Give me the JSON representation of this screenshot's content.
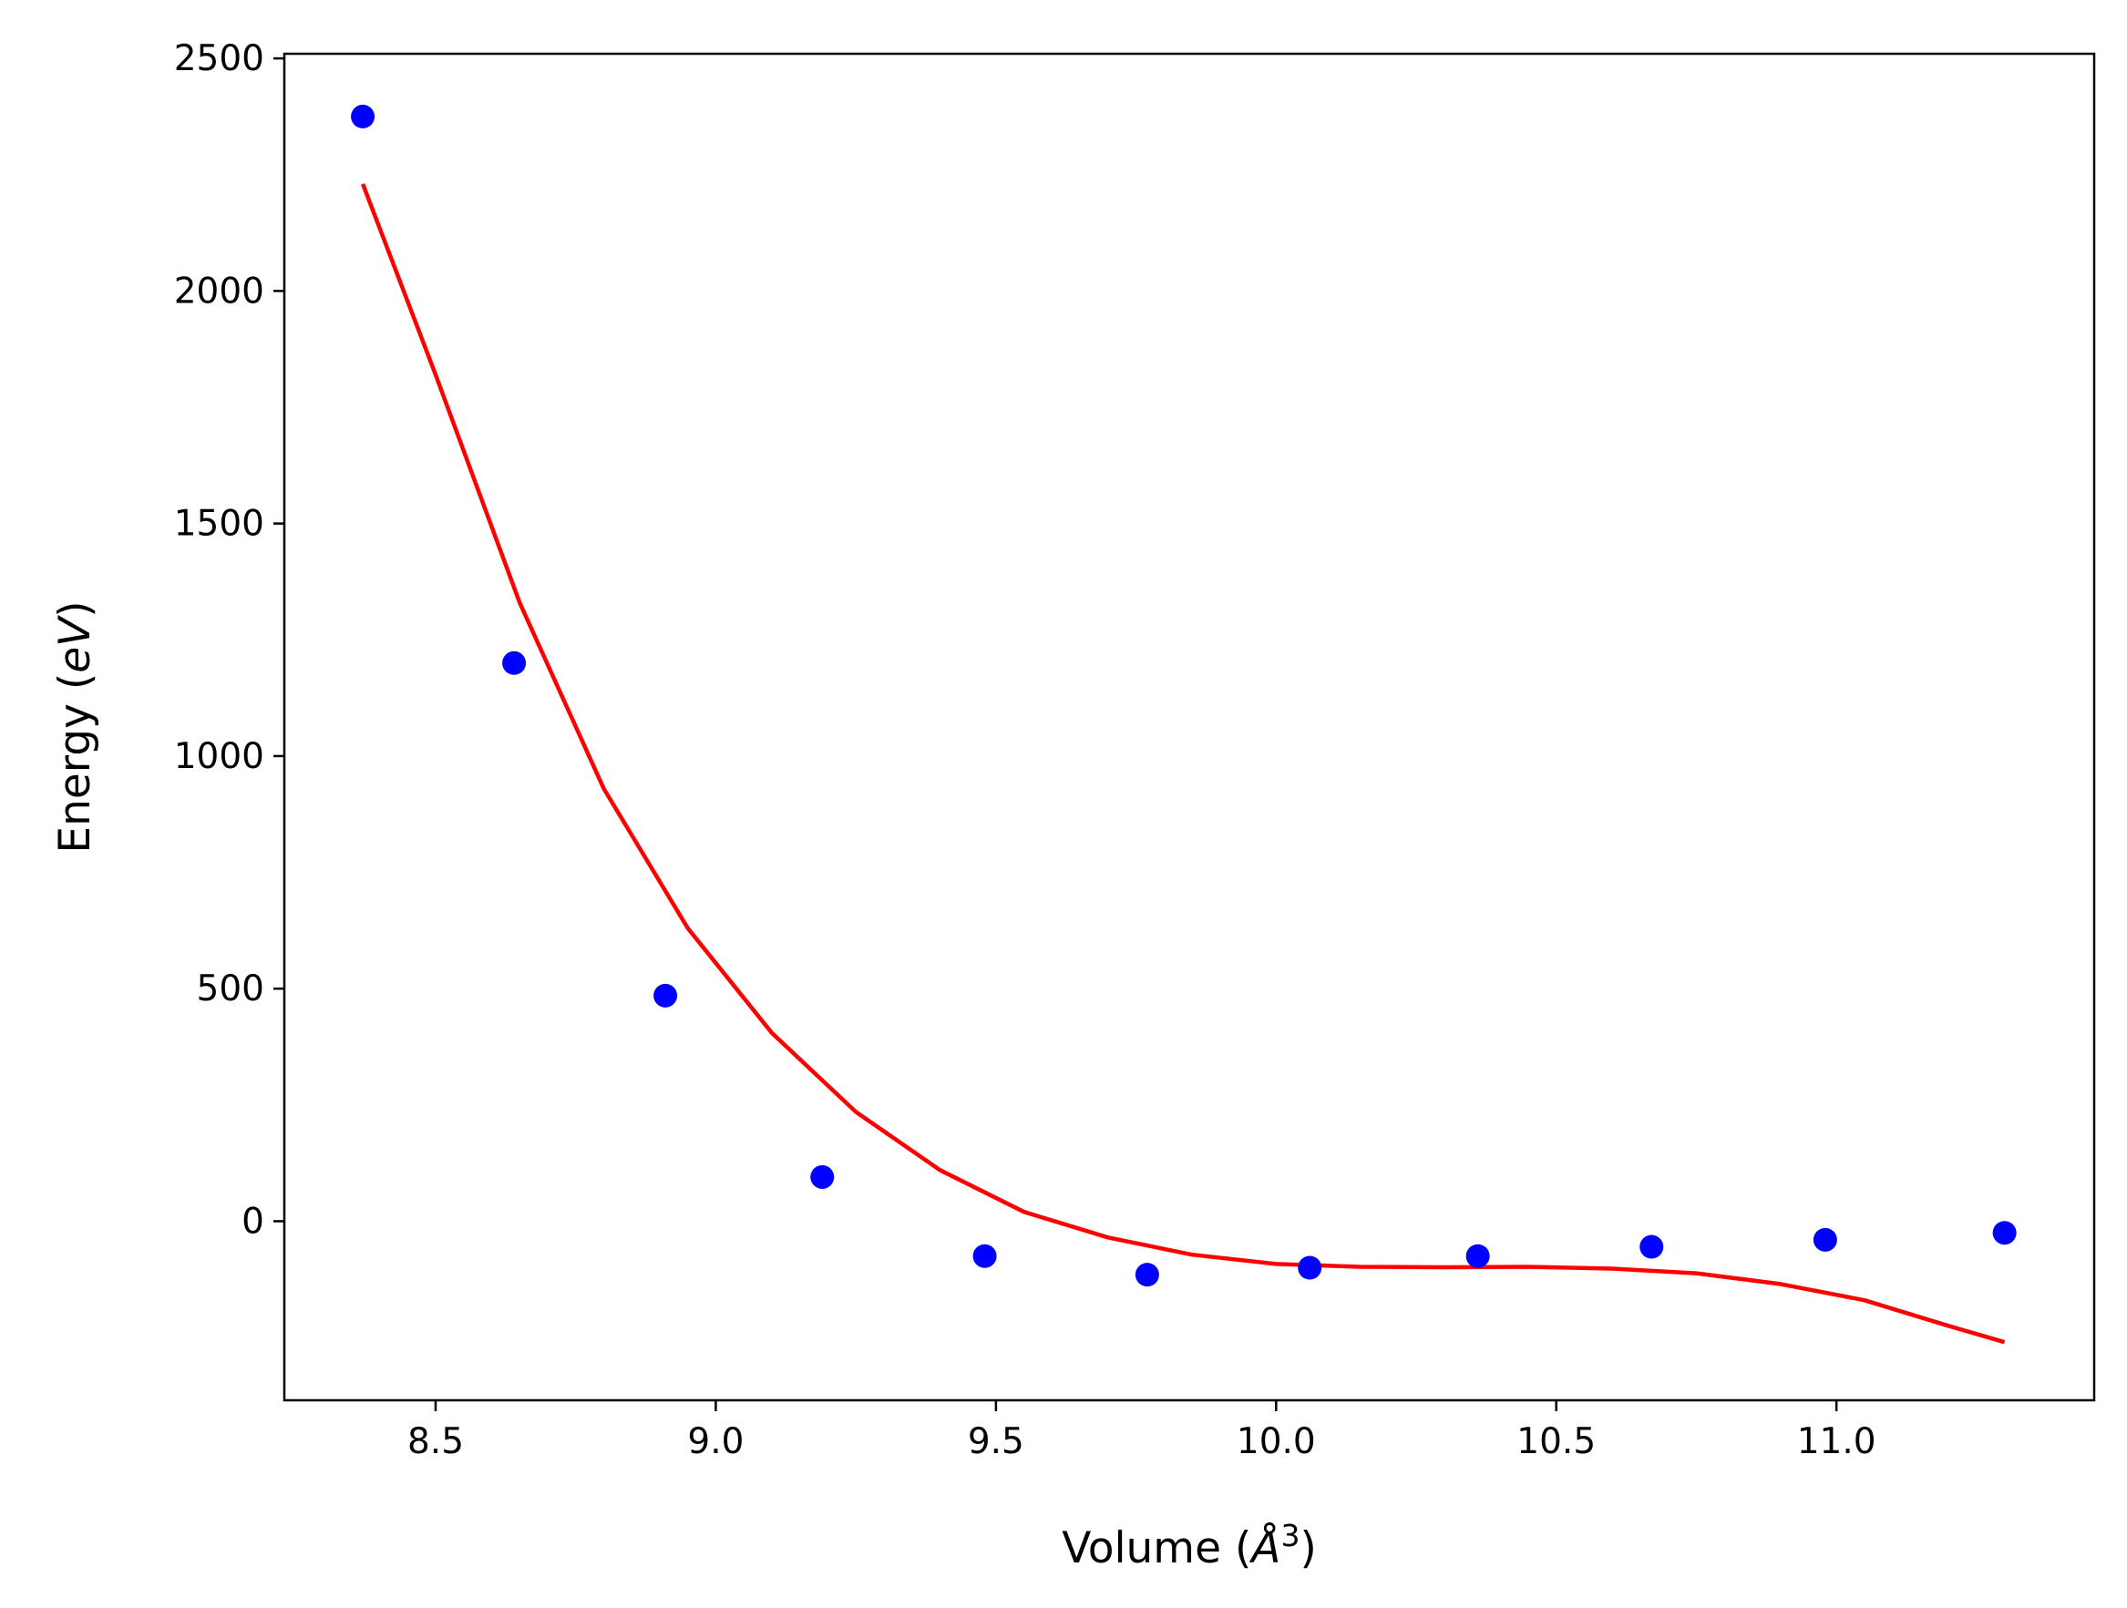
{
  "chart_data": {
    "type": "scatter",
    "title": "",
    "xlabel_main": "Volume (",
    "xlabel_symbol": "Å",
    "xlabel_exp": "3",
    "xlabel_close": ")",
    "ylabel_main": "Energy (",
    "ylabel_unit": "eV",
    "ylabel_close": ")",
    "xlim": [
      8.23,
      11.46
    ],
    "ylim": [
      -385,
      2510
    ],
    "x_ticks": [
      8.5,
      9.0,
      9.5,
      10.0,
      10.5,
      11.0
    ],
    "x_tick_labels": [
      "8.5",
      "9.0",
      "9.5",
      "10.0",
      "10.5",
      "11.0"
    ],
    "y_ticks": [
      0,
      500,
      1000,
      1500,
      2000,
      2500
    ],
    "y_tick_labels": [
      "0",
      "500",
      "1000",
      "1500",
      "2000",
      "2500"
    ],
    "grid": false,
    "legend": "none",
    "series": [
      {
        "kind": "scatter",
        "color": "#0000ff",
        "x": [
          8.37,
          8.64,
          8.91,
          9.19,
          9.48,
          9.77,
          10.06,
          10.36,
          10.67,
          10.98,
          11.3
        ],
        "y": [
          2375,
          1200,
          485,
          95,
          -75,
          -115,
          -100,
          -75,
          -55,
          -40,
          -25
        ]
      },
      {
        "kind": "line",
        "color": "#ff0000",
        "x": [
          8.37,
          8.5,
          8.65,
          8.8,
          8.95,
          9.1,
          9.25,
          9.4,
          9.55,
          9.7,
          9.85,
          10.0,
          10.15,
          10.3,
          10.45,
          10.6,
          10.75,
          10.9,
          11.05,
          11.2,
          11.3
        ],
        "y": [
          2230,
          1820,
          1330,
          930,
          630,
          405,
          235,
          110,
          20,
          -35,
          -72,
          -92,
          -98,
          -99,
          -98,
          -102,
          -112,
          -135,
          -170,
          -225,
          -260
        ]
      }
    ]
  }
}
